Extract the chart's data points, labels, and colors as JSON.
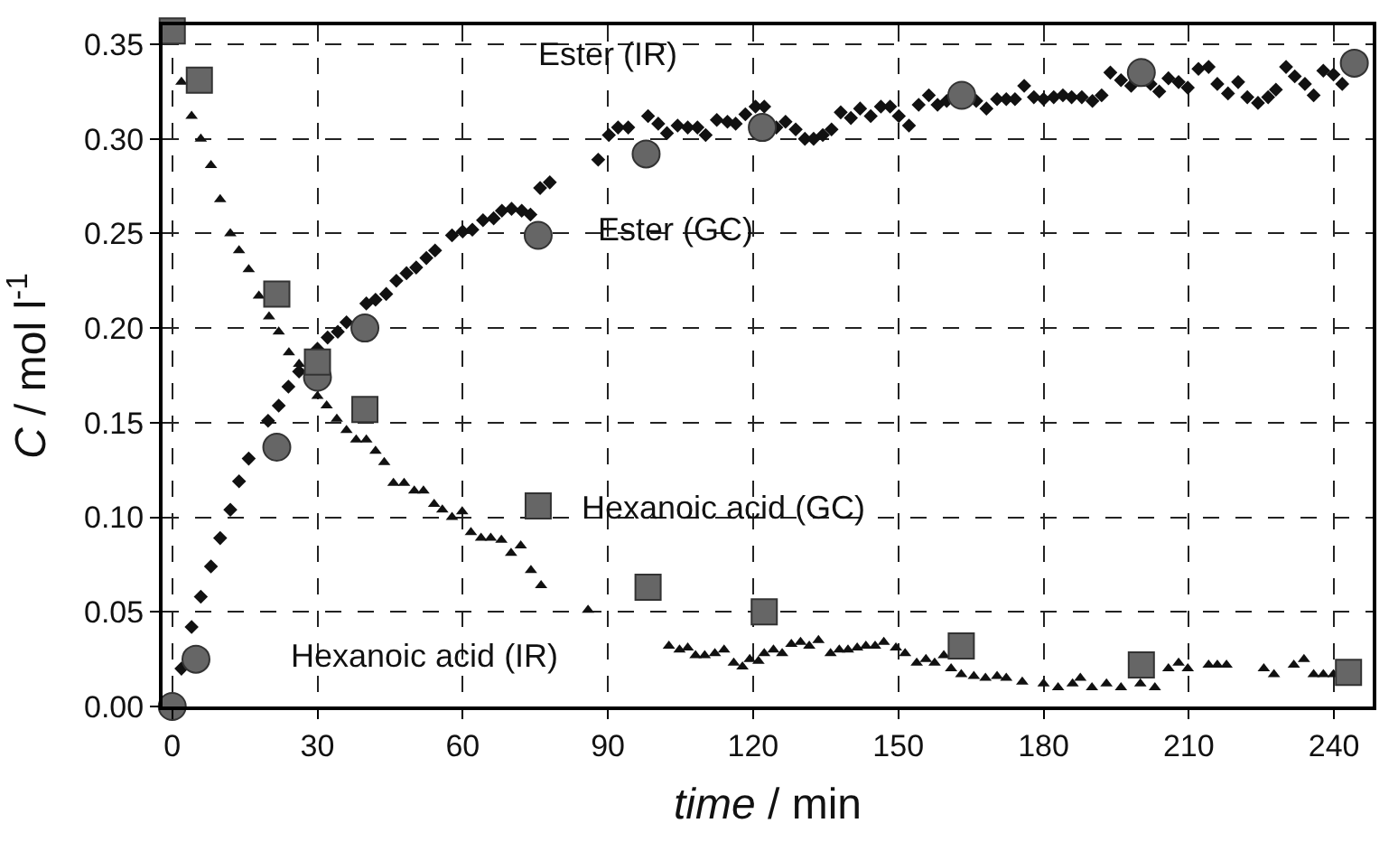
{
  "chart_data": {
    "type": "scatter",
    "xlabel": "time / min",
    "ylabel": "C / mol l$^{-1}$",
    "xlim": [
      -2,
      248
    ],
    "xticks": [
      0,
      30,
      60,
      90,
      120,
      150,
      180,
      210,
      240
    ],
    "ylim": [
      0,
      0.36
    ],
    "yticks": [
      {
        "value": 0,
        "label": "0.00"
      },
      {
        "value": 0.05,
        "label": "0.05"
      },
      {
        "value": 0.1,
        "label": "0.10"
      },
      {
        "value": 0.15,
        "label": "0.15"
      },
      {
        "value": 0.2,
        "label": "0.20"
      },
      {
        "value": 0.25,
        "label": "0.25"
      },
      {
        "value": 0.3,
        "label": "0.30"
      },
      {
        "value": 0.35,
        "label": "0.35"
      }
    ],
    "annotations": [
      "Ester (IR)",
      "Ester (GC)",
      "Hexanoic acid (GC)",
      "Hexanoic acid (IR)"
    ],
    "grid": true,
    "series": [
      {
        "color": "#111111",
        "marker": "diamond",
        "x": [
          1.9,
          4,
          5.9,
          8,
          9.9,
          12,
          13.8,
          15.8,
          19.8,
          22,
          24,
          26.2,
          30,
          32.1,
          34.2,
          36,
          40.1,
          42,
          44.2,
          46.3,
          48.4,
          50.4,
          52.5,
          54.3,
          57.8,
          60,
          62,
          64.2,
          66.4,
          68.1,
          70.1,
          72.2,
          74,
          76,
          78,
          88,
          90.2,
          92.1,
          94.2,
          98.3,
          100.4,
          102.2,
          104.4,
          106.5,
          108.5,
          110.2,
          112.5,
          114.7,
          116.4,
          118.4,
          120.5,
          122.3,
          124.8,
          126.7,
          128.8,
          130.7,
          132.5,
          134.4,
          136.2,
          138.1,
          140.2,
          142.1,
          144.3,
          146.4,
          148.3,
          150.1,
          152.2,
          154.2,
          156.3,
          158.1,
          160,
          166.1,
          168.2,
          170.4,
          172.3,
          174.1,
          176,
          178,
          180,
          182.1,
          184,
          185.8,
          187.9,
          190.1,
          192,
          193.8,
          196,
          198.1,
          202.1,
          203.9,
          205.8,
          207.9,
          209.8,
          212,
          214.1,
          215.9,
          218.1,
          220.2,
          222.1,
          224.3,
          226.4,
          228,
          230.1,
          231.9,
          234,
          235.8,
          237.8,
          239.9,
          241.7
        ],
        "values": [
          0.02,
          0.042,
          0.058,
          0.074,
          0.089,
          0.104,
          0.119,
          0.131,
          0.151,
          0.159,
          0.169,
          0.177,
          0.189,
          0.195,
          0.198,
          0.203,
          0.213,
          0.215,
          0.218,
          0.225,
          0.229,
          0.232,
          0.237,
          0.241,
          0.249,
          0.251,
          0.252,
          0.257,
          0.258,
          0.262,
          0.263,
          0.262,
          0.26,
          0.274,
          0.277,
          0.289,
          0.302,
          0.306,
          0.306,
          0.312,
          0.308,
          0.303,
          0.307,
          0.306,
          0.306,
          0.302,
          0.31,
          0.309,
          0.308,
          0.313,
          0.317,
          0.317,
          0.306,
          0.309,
          0.305,
          0.3,
          0.3,
          0.302,
          0.305,
          0.314,
          0.311,
          0.316,
          0.312,
          0.317,
          0.317,
          0.312,
          0.307,
          0.318,
          0.323,
          0.318,
          0.32,
          0.32,
          0.316,
          0.321,
          0.321,
          0.321,
          0.328,
          0.322,
          0.321,
          0.322,
          0.323,
          0.322,
          0.322,
          0.32,
          0.323,
          0.335,
          0.331,
          0.328,
          0.329,
          0.325,
          0.332,
          0.33,
          0.327,
          0.337,
          0.338,
          0.329,
          0.324,
          0.33,
          0.322,
          0.319,
          0.322,
          0.326,
          0.338,
          0.333,
          0.329,
          0.323,
          0.336,
          0.334,
          0.329
        ]
      },
      {
        "color": "#111111",
        "marker": "triangle",
        "x": [
          1.9,
          4,
          5.9,
          8,
          9.9,
          12,
          13.8,
          15.8,
          17.9,
          20,
          22,
          24.1,
          26.2,
          30,
          31.9,
          34,
          36,
          38,
          40.1,
          42,
          43.8,
          45.7,
          47.9,
          50,
          51.9,
          54.1,
          55.8,
          57.8,
          59.9,
          61.7,
          63.8,
          65.8,
          68,
          70,
          72,
          74.1,
          76.2,
          85.9,
          102.6,
          104.8,
          106.5,
          108.1,
          110,
          112.1,
          114,
          116,
          117.8,
          119.3,
          121.1,
          122.3,
          124.2,
          126,
          127.9,
          129.8,
          131.6,
          133.5,
          136,
          137.8,
          139.6,
          141.5,
          143.3,
          145.2,
          147,
          149.5,
          151.4,
          153.8,
          155.7,
          157.5,
          159.4,
          160.9,
          163,
          165.6,
          168,
          170.4,
          172.3,
          175.6,
          180,
          183,
          186,
          187.6,
          190,
          193,
          196,
          200,
          203,
          205.8,
          207.9,
          209.8,
          214.1,
          215.9,
          217.8,
          225.5,
          227.6,
          231.7,
          233.8,
          235.8,
          237.8,
          239.9
        ],
        "values": [
          0.33,
          0.312,
          0.3,
          0.286,
          0.268,
          0.25,
          0.241,
          0.231,
          0.217,
          0.206,
          0.198,
          0.187,
          0.181,
          0.164,
          0.159,
          0.152,
          0.146,
          0.141,
          0.141,
          0.135,
          0.129,
          0.118,
          0.118,
          0.114,
          0.114,
          0.107,
          0.104,
          0.1,
          0.103,
          0.092,
          0.089,
          0.089,
          0.088,
          0.081,
          0.085,
          0.072,
          0.064,
          0.051,
          0.032,
          0.03,
          0.031,
          0.027,
          0.027,
          0.028,
          0.03,
          0.023,
          0.021,
          0.025,
          0.024,
          0.028,
          0.03,
          0.028,
          0.033,
          0.034,
          0.032,
          0.035,
          0.028,
          0.03,
          0.03,
          0.031,
          0.032,
          0.032,
          0.034,
          0.031,
          0.028,
          0.023,
          0.025,
          0.023,
          0.027,
          0.02,
          0.017,
          0.016,
          0.015,
          0.016,
          0.015,
          0.013,
          0.012,
          0.01,
          0.012,
          0.015,
          0.01,
          0.012,
          0.01,
          0.012,
          0.01,
          0.02,
          0.023,
          0.02,
          0.022,
          0.022,
          0.022,
          0.02,
          0.017,
          0.022,
          0.025,
          0.017,
          0.017,
          0.017
        ]
      },
      {
        "color": "#666666",
        "marker": "circle",
        "x": [
          0,
          4.9,
          21.6,
          30,
          39.8,
          75.6,
          97.9,
          121.9,
          163.1,
          200.2,
          244.2
        ],
        "values": [
          0.0,
          0.025,
          0.137,
          0.174,
          0.2,
          0.249,
          0.292,
          0.306,
          0.323,
          0.335,
          0.34
        ]
      },
      {
        "color": "#666666",
        "marker": "square",
        "x": [
          0,
          5.6,
          21.6,
          30,
          39.8,
          75.6,
          98.3,
          122.3,
          163,
          200.2,
          243
        ],
        "values": [
          0.357,
          0.331,
          0.218,
          0.182,
          0.157,
          0.106,
          0.063,
          0.05,
          0.032,
          0.022,
          0.018
        ]
      }
    ]
  }
}
